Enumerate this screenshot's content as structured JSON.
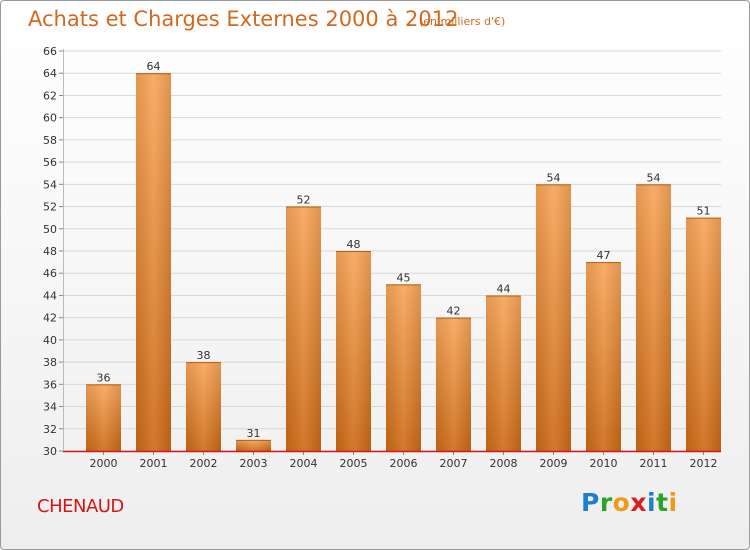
{
  "header": {
    "title": "Achats et Charges Externes 2000 à 2012",
    "unit": "(en milliers d'€)"
  },
  "footer": {
    "city": "CHENAUD",
    "logo": {
      "letters": [
        "P",
        "r",
        "o",
        "x",
        "i",
        "t",
        "i"
      ],
      "colors": [
        "#1e7fd0",
        "#2aa52a",
        "#f09a15",
        "#d62020",
        "#1e7fd0",
        "#2aa52a",
        "#f09a15"
      ]
    }
  },
  "chart_data": {
    "type": "bar",
    "title": "Achats et Charges Externes 2000 à 2012",
    "categories": [
      "2000",
      "2001",
      "2002",
      "2003",
      "2004",
      "2005",
      "2006",
      "2007",
      "2008",
      "2009",
      "2010",
      "2011",
      "2012"
    ],
    "values": [
      36,
      64,
      38,
      31,
      52,
      48,
      45,
      42,
      44,
      54,
      47,
      54,
      51
    ],
    "ylim": [
      30,
      66
    ],
    "yticks": [
      30,
      32,
      34,
      36,
      38,
      40,
      42,
      44,
      46,
      48,
      50,
      52,
      54,
      56,
      58,
      60,
      62,
      64,
      66
    ],
    "grid": true,
    "bar_color": "#f0933a",
    "axis_color": "#d61616"
  }
}
